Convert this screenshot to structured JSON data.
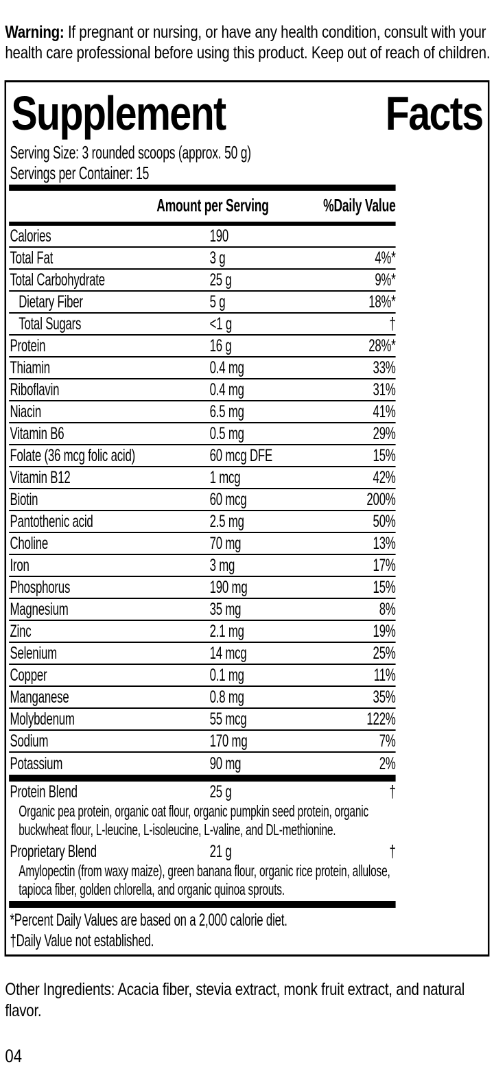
{
  "warning": {
    "label": "Warning:",
    "text": "If pregnant or nursing, or have any health condition, consult with your health care professional before using this product. Keep out of reach of children."
  },
  "panel": {
    "title_words": [
      "Supplement",
      "Facts"
    ],
    "serving_size": "Serving Size: 3 rounded scoops (approx. 50 g)",
    "servings_per_container": "Servings per Container: 15",
    "columns": {
      "amount": "Amount per Serving",
      "daily_value": "%Daily Value"
    },
    "nutrients": [
      {
        "name": "Calories",
        "amount": "190",
        "dv": "",
        "indent": false
      },
      {
        "name": "Total Fat",
        "amount": "3 g",
        "dv": "4%*",
        "indent": false
      },
      {
        "name": "Total Carbohydrate",
        "amount": "25 g",
        "dv": "9%*",
        "indent": false
      },
      {
        "name": "Dietary Fiber",
        "amount": "5 g",
        "dv": "18%*",
        "indent": true
      },
      {
        "name": "Total Sugars",
        "amount": "<1 g",
        "dv": "†",
        "indent": true
      },
      {
        "name": "Protein",
        "amount": "16 g",
        "dv": "28%*",
        "indent": false
      },
      {
        "name": "Thiamin",
        "amount": "0.4 mg",
        "dv": "33%",
        "indent": false
      },
      {
        "name": "Riboflavin",
        "amount": "0.4 mg",
        "dv": "31%",
        "indent": false
      },
      {
        "name": "Niacin",
        "amount": "6.5 mg",
        "dv": "41%",
        "indent": false
      },
      {
        "name": "Vitamin B6",
        "amount": "0.5 mg",
        "dv": "29%",
        "indent": false
      },
      {
        "name": "Folate (36 mcg folic acid)",
        "amount": "60 mcg DFE",
        "dv": "15%",
        "indent": false
      },
      {
        "name": "Vitamin B12",
        "amount": "1 mcg",
        "dv": "42%",
        "indent": false
      },
      {
        "name": "Biotin",
        "amount": "60 mcg",
        "dv": "200%",
        "indent": false
      },
      {
        "name": "Pantothenic acid",
        "amount": "2.5 mg",
        "dv": "50%",
        "indent": false
      },
      {
        "name": "Choline",
        "amount": "70 mg",
        "dv": "13%",
        "indent": false
      },
      {
        "name": "Iron",
        "amount": "3 mg",
        "dv": "17%",
        "indent": false
      },
      {
        "name": "Phosphorus",
        "amount": "190 mg",
        "dv": "15%",
        "indent": false
      },
      {
        "name": "Magnesium",
        "amount": "35 mg",
        "dv": "8%",
        "indent": false
      },
      {
        "name": "Zinc",
        "amount": "2.1 mg",
        "dv": "19%",
        "indent": false
      },
      {
        "name": "Selenium",
        "amount": "14 mcg",
        "dv": "25%",
        "indent": false
      },
      {
        "name": "Copper",
        "amount": "0.1 mg",
        "dv": "11%",
        "indent": false
      },
      {
        "name": "Manganese",
        "amount": "0.8 mg",
        "dv": "35%",
        "indent": false
      },
      {
        "name": "Molybdenum",
        "amount": "55 mcg",
        "dv": "122%",
        "indent": false
      },
      {
        "name": "Sodium",
        "amount": "170 mg",
        "dv": "7%",
        "indent": false
      },
      {
        "name": "Potassium",
        "amount": "90 mg",
        "dv": "2%",
        "indent": false
      }
    ],
    "blends": [
      {
        "name": "Protein Blend",
        "amount": "25 g",
        "dv": "†",
        "description": "Organic pea protein, organic oat flour, organic pumpkin seed protein, organic buckwheat flour, L-leucine, L-isoleucine, L-valine, and DL-methionine."
      },
      {
        "name": "Proprietary Blend",
        "amount": "21 g",
        "dv": "†",
        "description": "Amylopectin (from waxy maize), green banana flour, organic rice protein, allulose, tapioca fiber, golden chlorella, and organic quinoa sprouts."
      }
    ],
    "footnotes": [
      "*Percent Daily Values are based on a 2,000 calorie diet.",
      "†Daily Value not established."
    ]
  },
  "other_ingredients": "Other Ingredients: Acacia fiber, stevia extract, monk fruit extract, and natural flavor.",
  "page_number": "04"
}
